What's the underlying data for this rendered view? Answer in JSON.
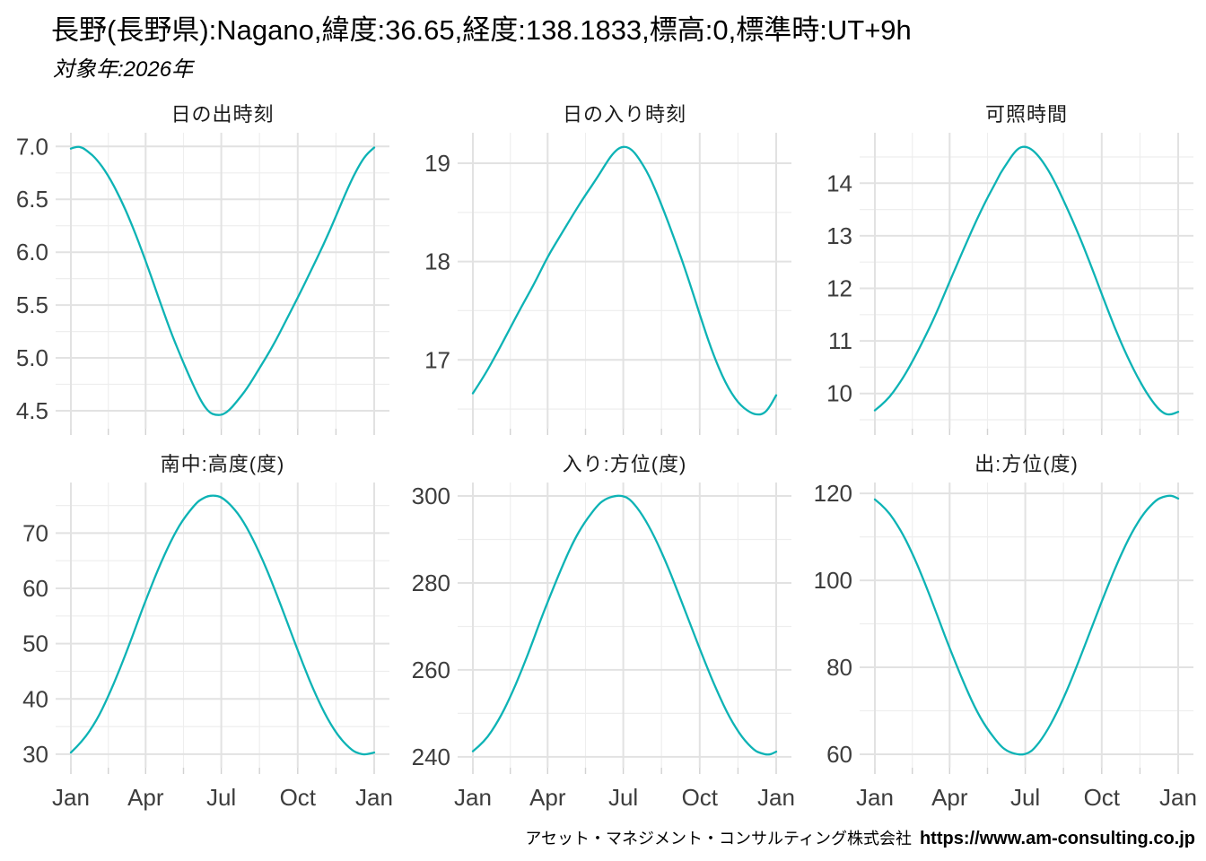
{
  "page": {
    "title": "長野(長野県):Nagano,緯度:36.65,経度:138.1833,標高:0,標準時:UT+9h",
    "subtitle": "対象年:2026年",
    "footer": {
      "company": "アセット・マネジメント・コンサルティング株式会社",
      "url": "https://www.am-consulting.co.jp"
    }
  },
  "colors": {
    "line": "#0db3b5",
    "grid_major": "#e2e2e2",
    "grid_minor": "#eeeeee",
    "tick": "#d2d2d2",
    "axis_text": "#3d3d3d",
    "title_text": "#1a1a1a"
  },
  "x_axis": {
    "unit": "day_of_year",
    "major_days": [
      1,
      91,
      182,
      274,
      366
    ],
    "minor_days": [
      46,
      136.5,
      228,
      320
    ],
    "tick_labels": [
      "Jan",
      "Apr",
      "Jul",
      "Oct",
      "Jan"
    ]
  },
  "chart_data": [
    {
      "name": "sunrise-time",
      "type": "line",
      "title": "日の出時刻",
      "ylabel": "hour",
      "ylim": [
        4.33,
        7.13
      ],
      "ytick_values": [
        4.5,
        5.0,
        5.5,
        6.0,
        6.5,
        7.0
      ],
      "ytick_labels": [
        "4.5",
        "5.0",
        "5.5",
        "6.0",
        "6.5",
        "7.0"
      ],
      "show_x_labels": false,
      "points": [
        [
          1,
          6.98
        ],
        [
          8,
          7.0
        ],
        [
          15,
          6.99
        ],
        [
          22,
          6.95
        ],
        [
          32,
          6.88
        ],
        [
          45,
          6.74
        ],
        [
          60,
          6.52
        ],
        [
          74,
          6.27
        ],
        [
          91,
          5.92
        ],
        [
          106,
          5.58
        ],
        [
          121,
          5.25
        ],
        [
          135,
          4.98
        ],
        [
          145,
          4.8
        ],
        [
          152,
          4.68
        ],
        [
          160,
          4.56
        ],
        [
          168,
          4.48
        ],
        [
          175,
          4.46
        ],
        [
          183,
          4.46
        ],
        [
          191,
          4.5
        ],
        [
          200,
          4.58
        ],
        [
          213,
          4.71
        ],
        [
          227,
          4.89
        ],
        [
          244,
          5.11
        ],
        [
          259,
          5.34
        ],
        [
          274,
          5.57
        ],
        [
          289,
          5.81
        ],
        [
          305,
          6.07
        ],
        [
          320,
          6.34
        ],
        [
          335,
          6.62
        ],
        [
          347,
          6.81
        ],
        [
          356,
          6.92
        ],
        [
          366,
          6.99
        ]
      ]
    },
    {
      "name": "sunset-time",
      "type": "line",
      "title": "日の入り時刻",
      "ylabel": "hour",
      "ylim": [
        16.3,
        19.31
      ],
      "ytick_values": [
        17,
        18,
        19
      ],
      "ytick_labels": [
        "17",
        "18",
        "19"
      ],
      "show_x_labels": false,
      "points": [
        [
          1,
          16.66
        ],
        [
          15,
          16.84
        ],
        [
          32,
          17.1
        ],
        [
          45,
          17.31
        ],
        [
          60,
          17.55
        ],
        [
          74,
          17.76
        ],
        [
          91,
          18.05
        ],
        [
          106,
          18.26
        ],
        [
          121,
          18.47
        ],
        [
          135,
          18.66
        ],
        [
          152,
          18.87
        ],
        [
          165,
          19.05
        ],
        [
          172,
          19.12
        ],
        [
          178,
          19.16
        ],
        [
          185,
          19.17
        ],
        [
          192,
          19.14
        ],
        [
          200,
          19.06
        ],
        [
          213,
          18.88
        ],
        [
          227,
          18.6
        ],
        [
          244,
          18.22
        ],
        [
          259,
          17.86
        ],
        [
          274,
          17.46
        ],
        [
          289,
          17.08
        ],
        [
          305,
          16.76
        ],
        [
          320,
          16.56
        ],
        [
          335,
          16.46
        ],
        [
          345,
          16.44
        ],
        [
          352,
          16.46
        ],
        [
          358,
          16.52
        ],
        [
          366,
          16.64
        ]
      ]
    },
    {
      "name": "daylight-hours",
      "type": "line",
      "title": "可照時間",
      "ylabel": "hours",
      "ylim": [
        9.33,
        14.96
      ],
      "ytick_values": [
        10,
        11,
        12,
        13,
        14
      ],
      "ytick_labels": [
        "10",
        "11",
        "12",
        "13",
        "14"
      ],
      "show_x_labels": false,
      "points": [
        [
          1,
          9.68
        ],
        [
          15,
          9.85
        ],
        [
          32,
          10.22
        ],
        [
          45,
          10.57
        ],
        [
          60,
          11.03
        ],
        [
          74,
          11.49
        ],
        [
          91,
          12.13
        ],
        [
          106,
          12.68
        ],
        [
          121,
          13.22
        ],
        [
          135,
          13.68
        ],
        [
          145,
          13.97
        ],
        [
          152,
          14.19
        ],
        [
          160,
          14.38
        ],
        [
          168,
          14.57
        ],
        [
          175,
          14.68
        ],
        [
          183,
          14.7
        ],
        [
          191,
          14.63
        ],
        [
          200,
          14.48
        ],
        [
          213,
          14.17
        ],
        [
          227,
          13.71
        ],
        [
          244,
          13.11
        ],
        [
          259,
          12.52
        ],
        [
          274,
          11.89
        ],
        [
          289,
          11.27
        ],
        [
          305,
          10.69
        ],
        [
          320,
          10.22
        ],
        [
          335,
          9.84
        ],
        [
          347,
          9.63
        ],
        [
          356,
          9.59
        ],
        [
          366,
          9.65
        ]
      ]
    },
    {
      "name": "culmination-altitude",
      "type": "line",
      "title": "南中:高度(度)",
      "ylabel": "degrees",
      "ylim": [
        27.55,
        79.15
      ],
      "ytick_values": [
        30,
        40,
        50,
        60,
        70
      ],
      "ytick_labels": [
        "30",
        "40",
        "50",
        "60",
        "70"
      ],
      "show_x_labels": true,
      "points": [
        [
          1,
          30.3
        ],
        [
          15,
          32.3
        ],
        [
          32,
          36.1
        ],
        [
          45,
          40.1
        ],
        [
          60,
          45.4
        ],
        [
          74,
          50.9
        ],
        [
          80,
          53.4
        ],
        [
          91,
          57.8
        ],
        [
          106,
          63.5
        ],
        [
          121,
          68.5
        ],
        [
          135,
          72.3
        ],
        [
          152,
          75.5
        ],
        [
          160,
          76.3
        ],
        [
          166,
          76.7
        ],
        [
          172,
          76.8
        ],
        [
          178,
          76.7
        ],
        [
          183,
          76.4
        ],
        [
          192,
          75.3
        ],
        [
          205,
          73.0
        ],
        [
          220,
          69.0
        ],
        [
          235,
          64.1
        ],
        [
          250,
          58.4
        ],
        [
          266,
          52.0
        ],
        [
          280,
          46.4
        ],
        [
          295,
          40.9
        ],
        [
          310,
          36.3
        ],
        [
          325,
          32.8
        ],
        [
          340,
          30.6
        ],
        [
          348,
          30.1
        ],
        [
          355,
          29.9
        ],
        [
          366,
          30.3
        ]
      ]
    },
    {
      "name": "sunset-azimuth",
      "type": "line",
      "title": "入り:方位(度)",
      "ylabel": "degrees",
      "ylim": [
        237.5,
        303.1
      ],
      "ytick_values": [
        240,
        260,
        280,
        300
      ],
      "ytick_labels": [
        "240",
        "260",
        "280",
        "300"
      ],
      "show_x_labels": true,
      "points": [
        [
          1,
          241.3
        ],
        [
          15,
          243.4
        ],
        [
          32,
          248.4
        ],
        [
          45,
          253.3
        ],
        [
          60,
          260.0
        ],
        [
          74,
          267.0
        ],
        [
          80,
          270.2
        ],
        [
          91,
          275.6
        ],
        [
          106,
          282.7
        ],
        [
          121,
          289.2
        ],
        [
          135,
          293.9
        ],
        [
          152,
          298.1
        ],
        [
          160,
          299.2
        ],
        [
          166,
          299.7
        ],
        [
          172,
          300.0
        ],
        [
          178,
          300.1
        ],
        [
          185,
          299.8
        ],
        [
          192,
          298.9
        ],
        [
          205,
          295.7
        ],
        [
          220,
          290.5
        ],
        [
          235,
          284.1
        ],
        [
          250,
          276.8
        ],
        [
          266,
          268.8
        ],
        [
          280,
          261.9
        ],
        [
          295,
          255.0
        ],
        [
          310,
          249.0
        ],
        [
          325,
          244.4
        ],
        [
          340,
          241.4
        ],
        [
          348,
          240.8
        ],
        [
          355,
          240.5
        ],
        [
          360,
          240.6
        ],
        [
          366,
          241.2
        ]
      ]
    },
    {
      "name": "sunrise-azimuth",
      "type": "line",
      "title": "出:方位(度)",
      "ylabel": "degrees",
      "ylim": [
        56.9,
        122.5
      ],
      "ytick_values": [
        60,
        80,
        100,
        120
      ],
      "ytick_labels": [
        "60",
        "80",
        "100",
        "120"
      ],
      "show_x_labels": true,
      "points": [
        [
          1,
          118.6
        ],
        [
          15,
          116.5
        ],
        [
          32,
          111.6
        ],
        [
          45,
          106.7
        ],
        [
          60,
          100.0
        ],
        [
          74,
          93.0
        ],
        [
          80,
          89.9
        ],
        [
          91,
          84.4
        ],
        [
          106,
          77.3
        ],
        [
          121,
          70.8
        ],
        [
          135,
          66.1
        ],
        [
          152,
          61.9
        ],
        [
          160,
          60.8
        ],
        [
          166,
          60.3
        ],
        [
          172,
          60.0
        ],
        [
          178,
          59.9
        ],
        [
          185,
          60.2
        ],
        [
          192,
          61.1
        ],
        [
          205,
          64.3
        ],
        [
          220,
          69.5
        ],
        [
          235,
          75.9
        ],
        [
          250,
          83.2
        ],
        [
          266,
          91.2
        ],
        [
          280,
          98.1
        ],
        [
          295,
          105.0
        ],
        [
          310,
          111.0
        ],
        [
          325,
          115.6
        ],
        [
          340,
          118.6
        ],
        [
          348,
          119.2
        ],
        [
          355,
          119.5
        ],
        [
          360,
          119.4
        ],
        [
          366,
          118.8
        ]
      ]
    }
  ]
}
